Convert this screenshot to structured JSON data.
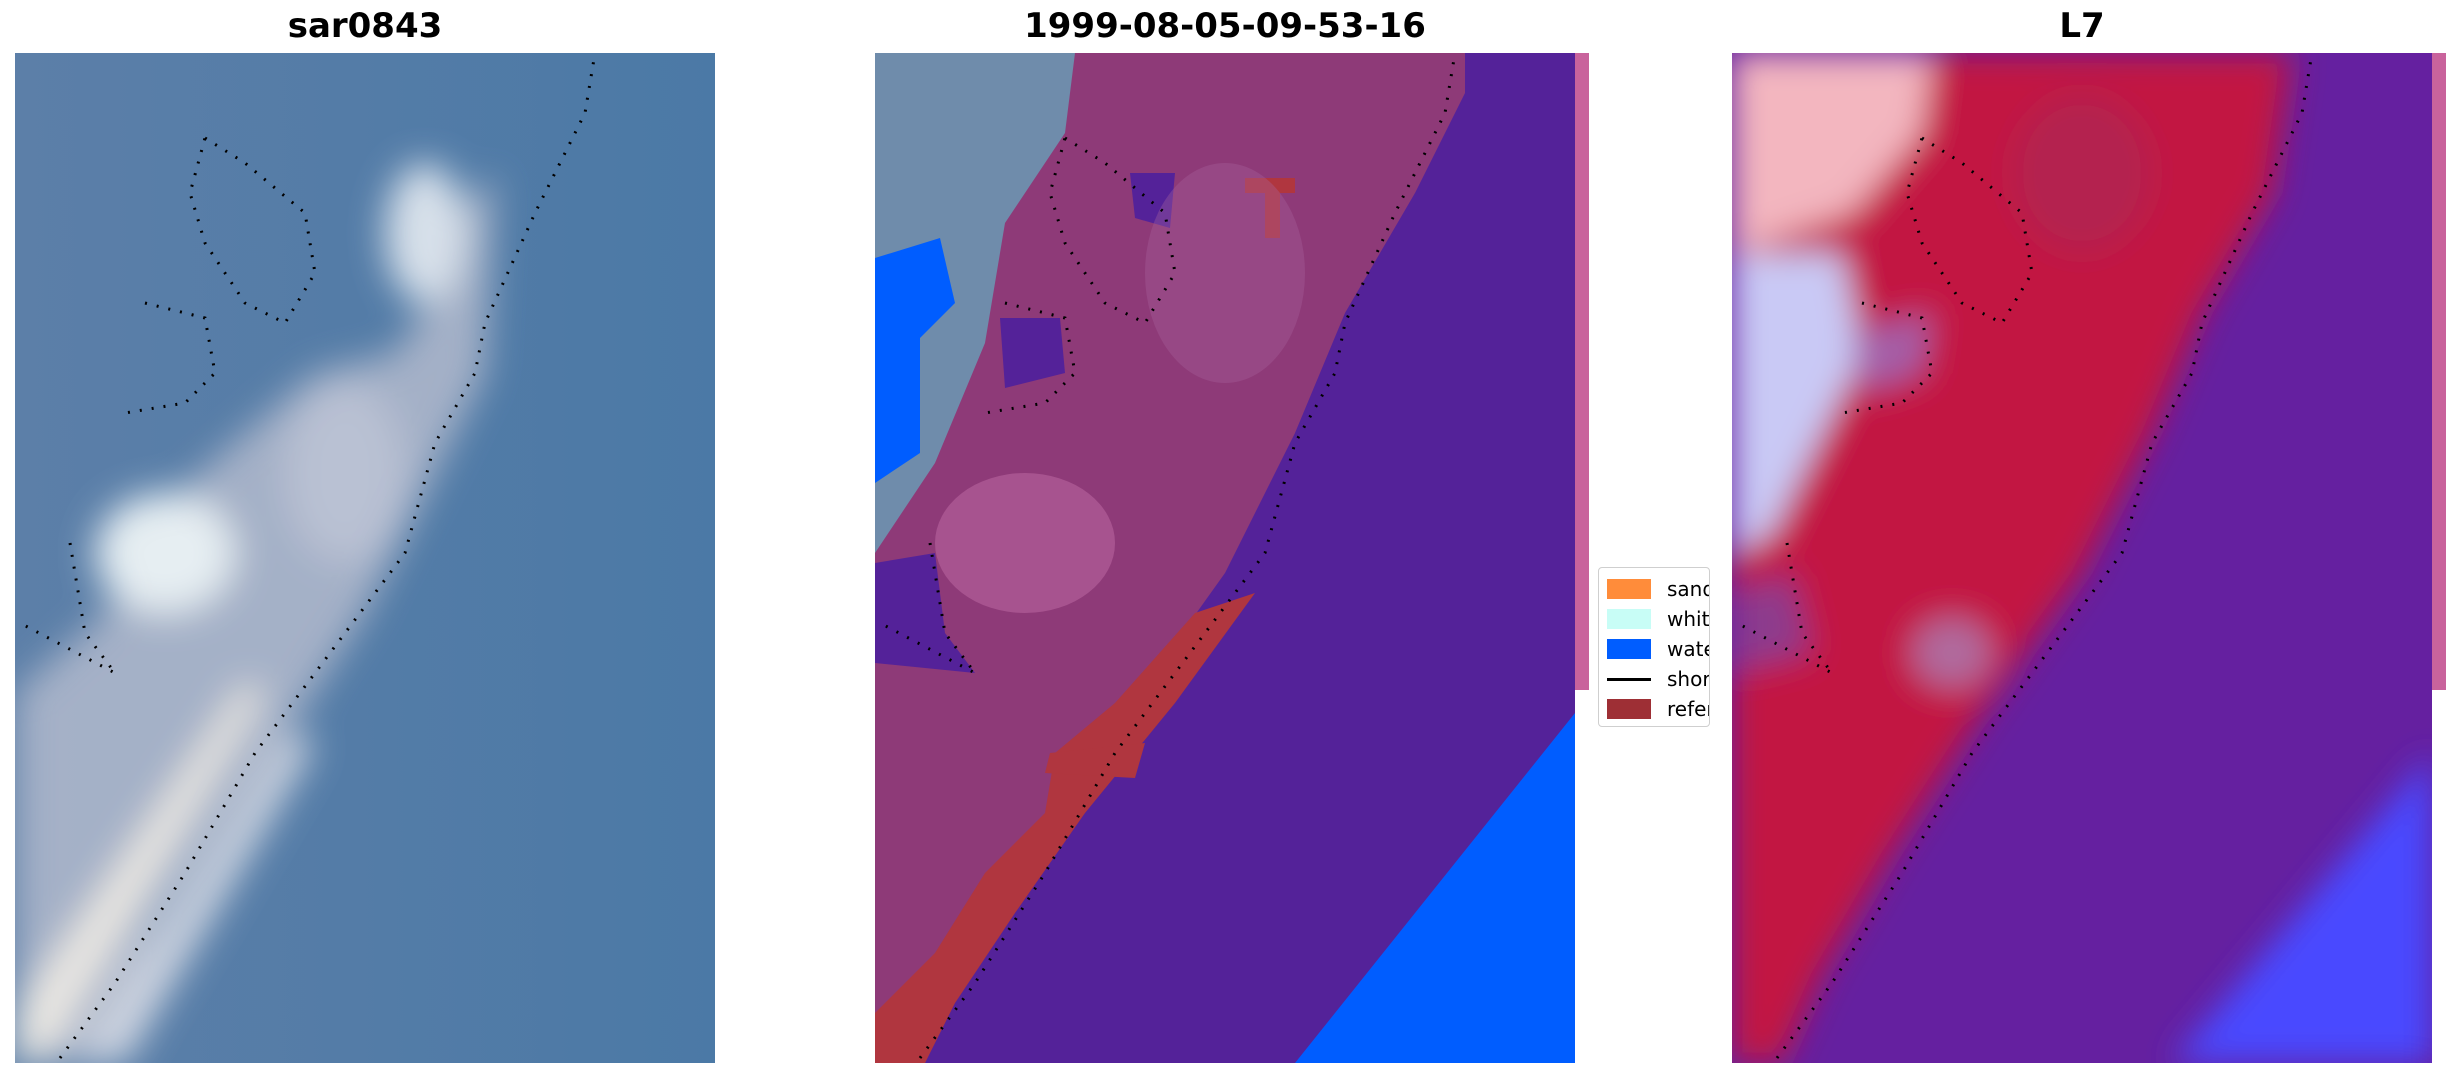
{
  "panels": [
    {
      "title": "sar0843"
    },
    {
      "title": "1999-08-05-09-53-16"
    },
    {
      "title": "L7"
    }
  ],
  "legend": {
    "items": [
      {
        "label": "sand",
        "color": "#ff8c3a",
        "kind": "patch"
      },
      {
        "label": "whitewater",
        "color": "#c8fdf6",
        "kind": "patch"
      },
      {
        "label": "water",
        "color": "#005dff",
        "kind": "patch"
      },
      {
        "label": "shoreline",
        "color": "#000000",
        "kind": "line"
      },
      {
        "label": "reference",
        "color": "#9e2f35",
        "kind": "patch"
      }
    ]
  },
  "colors": {
    "water_blue": "#4d7aa5",
    "sand_white": "#f0ece6",
    "classified_land": "#8e3a78",
    "classified_water": "#542299",
    "classified_bright_water": "#005dff",
    "reference_red": "#b0363f",
    "index_red": "#c21443",
    "index_purple": "#6520a0",
    "index_blue": "#4a48ff",
    "side_strip": "#c9639c"
  }
}
